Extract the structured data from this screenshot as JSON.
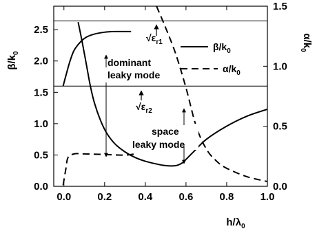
{
  "chart_data": {
    "type": "line",
    "xlabel": {
      "main": "h/λ",
      "sub": "0"
    },
    "ylabel_left": {
      "main": "β/k",
      "sub": "0"
    },
    "ylabel_right": {
      "main": "α/k",
      "sub": "0"
    },
    "xlim": [
      -0.05,
      1.0
    ],
    "ylim_left": [
      0,
      2.875
    ],
    "ylim_right": [
      0,
      1.5
    ],
    "x_ticks": [
      "0.0",
      "0.2",
      "0.4",
      "0.6",
      "0.8",
      "1.0"
    ],
    "x_tick_values": [
      0,
      0.2,
      0.4,
      0.6,
      0.8,
      1.0
    ],
    "y_left_ticks": [
      "0.0",
      "0.5",
      "1.0",
      "1.5",
      "2.0",
      "2.5"
    ],
    "y_left_tick_values": [
      0,
      0.5,
      1.0,
      1.5,
      2.0,
      2.5
    ],
    "y_right_ticks": [
      "0.0",
      "0.5",
      "1.0",
      "1.5"
    ],
    "y_right_tick_values": [
      0,
      0.5,
      1.0,
      1.5
    ],
    "grid": false,
    "legend_position": "top-right",
    "hlines": [
      {
        "y": 2.64,
        "label": {
          "main": "√ε",
          "sub": "r1"
        }
      },
      {
        "y": 1.6,
        "label": {
          "main": "√ε",
          "sub": "r2"
        }
      }
    ],
    "series": [
      {
        "name": {
          "main": "β/k",
          "sub": "0"
        },
        "axis": "left",
        "style": "solid",
        "segments": [
          {
            "x": [
              -0.004,
              0.01,
              0.03,
              0.05,
              0.08,
              0.11,
              0.15,
              0.2,
              0.25,
              0.3,
              0.33
            ],
            "y": [
              1.6,
              1.77,
              2.0,
              2.17,
              2.3,
              2.38,
              2.43,
              2.46,
              2.47,
              2.47,
              2.47
            ]
          },
          {
            "x": [
              0.07,
              0.09,
              0.11,
              0.13,
              0.15,
              0.18,
              0.21,
              0.25,
              0.3,
              0.35,
              0.4,
              0.45,
              0.5,
              0.55,
              0.58,
              0.6,
              0.64,
              0.7,
              0.8,
              0.9,
              1.0
            ],
            "y": [
              2.62,
              2.3,
              1.95,
              1.6,
              1.33,
              1.05,
              0.85,
              0.68,
              0.55,
              0.46,
              0.4,
              0.36,
              0.33,
              0.33,
              0.37,
              0.43,
              0.56,
              0.75,
              0.96,
              1.12,
              1.23
            ]
          }
        ]
      },
      {
        "name": {
          "main": "α/k",
          "sub": "0"
        },
        "axis": "right",
        "style": "dashed",
        "segments": [
          {
            "x": [
              -0.004,
              0.01,
              0.02,
              0.05,
              0.1,
              0.2,
              0.3,
              0.35
            ],
            "y": [
              0.01,
              0.15,
              0.24,
              0.27,
              0.27,
              0.265,
              0.26,
              0.27
            ]
          },
          {
            "x": [
              0.455,
              0.5,
              0.55,
              0.6,
              0.65,
              0.7,
              0.75,
              0.8,
              0.9,
              1.0
            ],
            "y": [
              1.5,
              1.32,
              1.1,
              0.82,
              0.5,
              0.31,
              0.21,
              0.15,
              0.08,
              0.04
            ]
          }
        ]
      }
    ],
    "annotations": [
      {
        "lines": [
          "dominant",
          "leaky mode"
        ]
      },
      {
        "lines": [
          "space",
          "leaky mode"
        ]
      }
    ]
  }
}
